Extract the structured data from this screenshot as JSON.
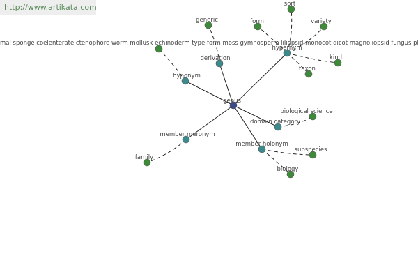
{
  "header": {
    "url": "http://www.artikata.com"
  },
  "nodes": [
    {
      "label": "genus"
    },
    {
      "label": "hyponym"
    },
    {
      "label": "derivation"
    },
    {
      "label": "hypernym"
    },
    {
      "label": "domain category"
    },
    {
      "label": "member holonym"
    },
    {
      "label": "member meronym"
    },
    {
      "label": "mal sponge coelenterate ctenophore worm mollusk echinoderm type form moss gymnosperm liliopsid monocot dicot magnoliopsid fungus plant fern"
    },
    {
      "label": "generic"
    },
    {
      "label": "form"
    },
    {
      "label": "sort"
    },
    {
      "label": "variety"
    },
    {
      "label": "kind"
    },
    {
      "label": "taxon"
    },
    {
      "label": "biological science"
    },
    {
      "label": "subspecies"
    },
    {
      "label": "biology"
    },
    {
      "label": "family"
    }
  ]
}
